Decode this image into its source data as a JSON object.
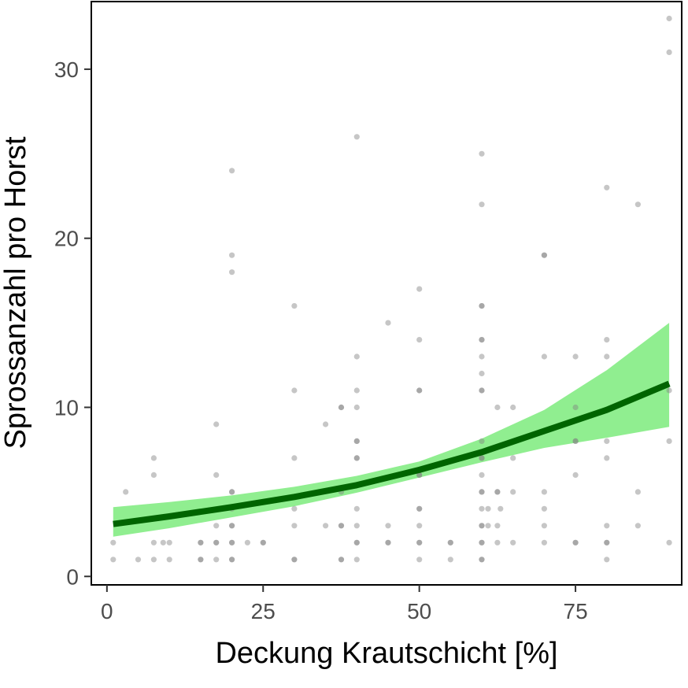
{
  "chart_data": {
    "type": "scatter",
    "title": "",
    "xlabel": "Deckung Krautschicht [%]",
    "ylabel": "Sprossanzahl pro Horst",
    "xlim": [
      -2.5,
      92
    ],
    "ylim": [
      -0.5,
      34
    ],
    "x_ticks": [
      0,
      25,
      50,
      75
    ],
    "x_tick_labels": [
      "0",
      "25",
      "50",
      "75"
    ],
    "y_ticks": [
      0,
      10,
      20,
      30
    ],
    "y_tick_labels": [
      "0",
      "10",
      "20",
      "30"
    ],
    "grid": false,
    "legend": "none",
    "colors": {
      "points": "#808080",
      "fit_line": "#006400",
      "ribbon": "#90ee90",
      "frame": "#000000"
    },
    "points": [
      [
        1,
        1
      ],
      [
        1,
        2
      ],
      [
        3,
        5
      ],
      [
        5,
        1
      ],
      [
        7.5,
        1
      ],
      [
        7.5,
        2
      ],
      [
        7.5,
        6
      ],
      [
        7.5,
        7
      ],
      [
        9,
        2
      ],
      [
        10,
        1
      ],
      [
        10,
        2
      ],
      [
        15,
        1
      ],
      [
        15,
        1
      ],
      [
        15,
        2
      ],
      [
        15,
        2
      ],
      [
        17.5,
        1
      ],
      [
        17.5,
        2
      ],
      [
        17.5,
        2
      ],
      [
        17.5,
        3
      ],
      [
        17.5,
        6
      ],
      [
        17.5,
        9
      ],
      [
        20,
        1
      ],
      [
        20,
        1
      ],
      [
        20,
        2
      ],
      [
        20,
        2
      ],
      [
        20,
        3
      ],
      [
        20,
        3
      ],
      [
        20,
        4
      ],
      [
        20,
        5
      ],
      [
        20,
        5
      ],
      [
        20,
        18
      ],
      [
        20,
        19
      ],
      [
        20,
        24
      ],
      [
        22.5,
        2
      ],
      [
        25,
        2
      ],
      [
        25,
        2
      ],
      [
        30,
        1
      ],
      [
        30,
        1
      ],
      [
        30,
        3
      ],
      [
        30,
        4
      ],
      [
        30,
        7
      ],
      [
        30,
        11
      ],
      [
        30,
        16
      ],
      [
        35,
        3
      ],
      [
        35,
        9
      ],
      [
        37.5,
        1
      ],
      [
        37.5,
        1
      ],
      [
        37.5,
        3
      ],
      [
        37.5,
        3
      ],
      [
        37.5,
        5
      ],
      [
        37.5,
        10
      ],
      [
        37.5,
        10
      ],
      [
        40,
        1
      ],
      [
        40,
        2
      ],
      [
        40,
        2
      ],
      [
        40,
        3
      ],
      [
        40,
        4
      ],
      [
        40,
        7
      ],
      [
        40,
        7
      ],
      [
        40,
        8
      ],
      [
        40,
        8
      ],
      [
        40,
        10
      ],
      [
        40,
        11
      ],
      [
        40,
        13
      ],
      [
        40,
        26
      ],
      [
        45,
        2
      ],
      [
        45,
        2
      ],
      [
        45,
        3
      ],
      [
        45,
        15
      ],
      [
        50,
        1
      ],
      [
        50,
        2
      ],
      [
        50,
        2
      ],
      [
        50,
        3
      ],
      [
        50,
        4
      ],
      [
        50,
        4
      ],
      [
        50,
        6
      ],
      [
        50,
        6
      ],
      [
        50,
        11
      ],
      [
        50,
        11
      ],
      [
        50,
        14
      ],
      [
        50,
        17
      ],
      [
        55,
        1
      ],
      [
        55,
        2
      ],
      [
        55,
        2
      ],
      [
        60,
        1
      ],
      [
        60,
        1
      ],
      [
        60,
        2
      ],
      [
        60,
        2
      ],
      [
        60,
        3
      ],
      [
        60,
        3
      ],
      [
        60,
        4
      ],
      [
        60,
        5
      ],
      [
        60,
        5
      ],
      [
        60,
        6
      ],
      [
        60,
        7
      ],
      [
        60,
        7
      ],
      [
        60,
        8
      ],
      [
        60,
        11
      ],
      [
        60,
        11
      ],
      [
        60,
        12
      ],
      [
        60,
        13
      ],
      [
        60,
        14
      ],
      [
        60,
        14
      ],
      [
        60,
        16
      ],
      [
        60,
        16
      ],
      [
        60,
        22
      ],
      [
        60,
        25
      ],
      [
        61,
        3
      ],
      [
        61,
        4
      ],
      [
        62.5,
        2
      ],
      [
        62.5,
        3
      ],
      [
        62.5,
        5
      ],
      [
        62.5,
        5
      ],
      [
        62.5,
        10
      ],
      [
        63,
        4
      ],
      [
        65,
        2
      ],
      [
        65,
        5
      ],
      [
        65,
        7
      ],
      [
        65,
        10
      ],
      [
        70,
        2
      ],
      [
        70,
        3
      ],
      [
        70,
        4
      ],
      [
        70,
        5
      ],
      [
        70,
        13
      ],
      [
        70,
        19
      ],
      [
        70,
        19
      ],
      [
        75,
        2
      ],
      [
        75,
        2
      ],
      [
        75,
        6
      ],
      [
        75,
        8
      ],
      [
        75,
        8
      ],
      [
        75,
        10
      ],
      [
        75,
        13
      ],
      [
        80,
        1
      ],
      [
        80,
        2
      ],
      [
        80,
        2
      ],
      [
        80,
        3
      ],
      [
        80,
        7
      ],
      [
        80,
        8
      ],
      [
        80,
        13
      ],
      [
        80,
        14
      ],
      [
        80,
        23
      ],
      [
        85,
        3
      ],
      [
        85,
        5
      ],
      [
        85,
        22
      ],
      [
        90,
        2
      ],
      [
        90,
        8
      ],
      [
        90,
        11
      ],
      [
        90,
        31
      ],
      [
        90,
        33
      ]
    ],
    "fit": {
      "x": [
        1,
        10,
        20,
        30,
        40,
        50,
        60,
        70,
        80,
        90
      ],
      "y": [
        3.1,
        3.55,
        4.1,
        4.7,
        5.4,
        6.3,
        7.35,
        8.6,
        9.85,
        11.4
      ],
      "lower": [
        2.35,
        2.85,
        3.5,
        4.15,
        4.95,
        5.85,
        6.75,
        7.6,
        8.2,
        8.85
      ],
      "upper": [
        4.1,
        4.4,
        4.8,
        5.3,
        5.95,
        6.8,
        8.15,
        9.85,
        12.2,
        15.0
      ]
    }
  }
}
